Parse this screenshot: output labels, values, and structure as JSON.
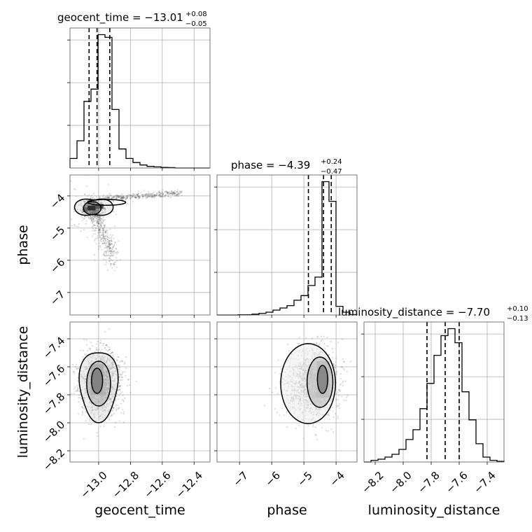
{
  "chart_data": {
    "type": "corner",
    "parameters": [
      "geocent_time",
      "phase",
      "luminosity_distance"
    ],
    "axis_labels": {
      "x": [
        "geocent_time",
        "phase",
        "luminosity_distance"
      ],
      "y": [
        "phase",
        "luminosity_distance"
      ]
    },
    "ranges": {
      "geocent_time": [
        -13.18,
        -12.3
      ],
      "phase": [
        -7.7,
        -3.35
      ],
      "luminosity_distance": [
        -8.28,
        -7.28
      ]
    },
    "ticks": {
      "geocent_time": {
        "values": [
          -13.0,
          -12.8,
          -12.6,
          -12.4
        ],
        "labels": [
          "−13.0",
          "−12.8",
          "−12.6",
          "−12.4"
        ]
      },
      "phase": {
        "values": [
          -7,
          -6,
          -5,
          -4
        ],
        "labels": [
          "−7",
          "−6",
          "−5",
          "−4"
        ]
      },
      "luminosity_distance": {
        "values": [
          -8.2,
          -8.0,
          -7.8,
          -7.6,
          -7.4
        ],
        "labels": [
          "−8.2",
          "−8.0",
          "−7.8",
          "−7.6",
          "−7.4"
        ]
      }
    },
    "titles": [
      {
        "param": "geocent_time",
        "base": "geocent_time = −13.01",
        "plus": "+0.08",
        "minus": "−0.05"
      },
      {
        "param": "phase",
        "base": "phase = −4.39",
        "plus": "+0.24",
        "minus": "−0.47"
      },
      {
        "param": "luminosity_distance",
        "base": "luminosity_distance = −7.70",
        "plus": "+0.10",
        "minus": "−0.13"
      }
    ],
    "quantiles": {
      "geocent_time": [
        -13.06,
        -13.01,
        -12.93
      ],
      "phase": [
        -4.86,
        -4.39,
        -4.15
      ],
      "luminosity_distance": [
        -7.83,
        -7.7,
        -7.6
      ]
    },
    "histograms": {
      "geocent_time": {
        "edges": [
          -13.18,
          -13.136,
          -13.092,
          -13.048,
          -13.004,
          -12.96,
          -12.916,
          -12.872,
          -12.828,
          -12.784,
          -12.74,
          -12.696,
          -12.652,
          -12.608,
          -12.564,
          -12.52,
          -12.476,
          -12.432,
          -12.388,
          -12.344,
          -12.3
        ],
        "counts": [
          0.07,
          0.2,
          0.49,
          0.58,
          0.98,
          0.96,
          0.43,
          0.14,
          0.07,
          0.04,
          0.022,
          0.012,
          0.008,
          0.004,
          0.003,
          0,
          0,
          0,
          0,
          0
        ]
      },
      "phase": {
        "edges": [
          -7.7,
          -7.4825,
          -7.265,
          -7.0475,
          -6.83,
          -6.6125,
          -6.395,
          -6.1775,
          -5.96,
          -5.7425,
          -5.525,
          -5.3075,
          -5.09,
          -4.8725,
          -4.655,
          -4.4375,
          -4.22,
          -4.0025,
          -3.785,
          -3.5675,
          -3.35
        ],
        "counts": [
          0,
          0,
          0,
          0.002,
          0.002,
          0.006,
          0.012,
          0.02,
          0.035,
          0.05,
          0.067,
          0.105,
          0.138,
          0.21,
          0.27,
          0.95,
          0.81,
          0.062,
          0.02,
          0.003
        ]
      },
      "luminosity_distance": {
        "edges": [
          -8.28,
          -8.23,
          -8.18,
          -8.13,
          -8.08,
          -8.03,
          -7.98,
          -7.93,
          -7.88,
          -7.83,
          -7.78,
          -7.73,
          -7.68,
          -7.63,
          -7.58,
          -7.53,
          -7.48,
          -7.43,
          -7.38,
          -7.33,
          -7.28
        ],
        "counts": [
          0,
          0.012,
          0.02,
          0.035,
          0.055,
          0.09,
          0.16,
          0.23,
          0.38,
          0.56,
          0.76,
          0.9,
          0.95,
          0.85,
          0.5,
          0.3,
          0.13,
          0.035,
          0.012,
          0.005
        ]
      }
    },
    "grid": true,
    "colors": {
      "hist": "#000000",
      "scatter": "#555555",
      "contour": "#000000",
      "grid": "#b0b0b0"
    }
  }
}
